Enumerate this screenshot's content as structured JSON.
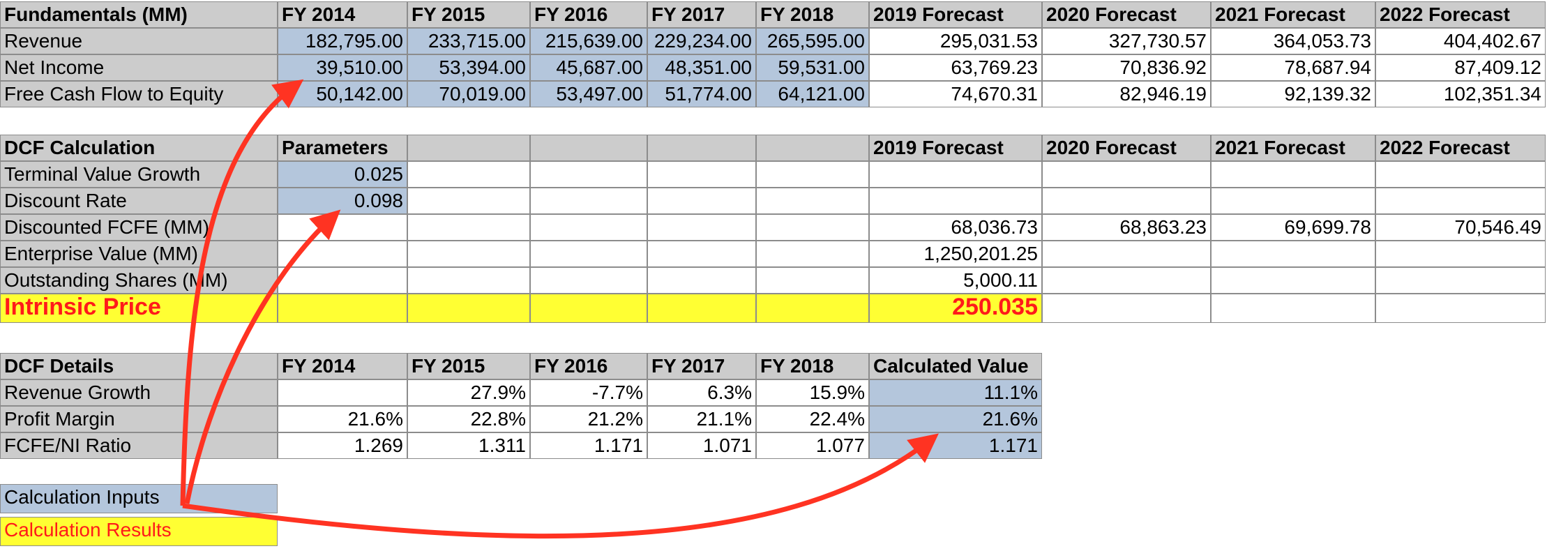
{
  "fundamentals": {
    "header": [
      "Fundamentals (MM)",
      "FY 2014",
      "FY 2015",
      "FY 2016",
      "FY 2017",
      "FY 2018",
      "2019 Forecast",
      "2020 Forecast",
      "2021 Forecast",
      "2022 Forecast"
    ],
    "rows": [
      {
        "label": "Revenue",
        "values": [
          "182,795.00",
          "233,715.00",
          "215,639.00",
          "229,234.00",
          "265,595.00",
          "295,031.53",
          "327,730.57",
          "364,053.73",
          "404,402.67"
        ]
      },
      {
        "label": "Net Income",
        "values": [
          "39,510.00",
          "53,394.00",
          "45,687.00",
          "48,351.00",
          "59,531.00",
          "63,769.23",
          "70,836.92",
          "78,687.94",
          "87,409.12"
        ]
      },
      {
        "label": "Free Cash Flow to Equity",
        "values": [
          "50,142.00",
          "70,019.00",
          "53,497.00",
          "51,774.00",
          "64,121.00",
          "74,670.31",
          "82,946.19",
          "92,139.32",
          "102,351.34"
        ]
      }
    ]
  },
  "dcf_calc": {
    "header": [
      "DCF Calculation",
      "Parameters",
      "",
      "",
      "",
      "",
      "2019 Forecast",
      "2020 Forecast",
      "2021 Forecast",
      "2022 Forecast"
    ],
    "rows": [
      {
        "label": "Terminal Value Growth",
        "values": [
          "0.025",
          "",
          "",
          "",
          "",
          "",
          "",
          "",
          ""
        ]
      },
      {
        "label": "Discount Rate",
        "values": [
          "0.098",
          "",
          "",
          "",
          "",
          "",
          "",
          "",
          ""
        ]
      },
      {
        "label": "Discounted FCFE (MM)",
        "values": [
          "",
          "",
          "",
          "",
          "",
          "68,036.73",
          "68,863.23",
          "69,699.78",
          "70,546.49"
        ]
      },
      {
        "label": "Enterprise Value (MM)",
        "values": [
          "",
          "",
          "",
          "",
          "",
          "1,250,201.25",
          "",
          "",
          ""
        ]
      },
      {
        "label": "Outstanding Shares (MM)",
        "values": [
          "",
          "",
          "",
          "",
          "",
          "5,000.11",
          "",
          "",
          ""
        ]
      }
    ],
    "intrinsic_label": "Intrinsic Price",
    "intrinsic_value": "250.035"
  },
  "dcf_details": {
    "header": [
      "DCF Details",
      "FY 2014",
      "FY 2015",
      "FY 2016",
      "FY 2017",
      "FY 2018",
      "Calculated Value"
    ],
    "rows": [
      {
        "label": "Revenue Growth",
        "values": [
          "",
          "27.9%",
          "-7.7%",
          "6.3%",
          "15.9%",
          "11.1%"
        ]
      },
      {
        "label": "Profit Margin",
        "values": [
          "21.6%",
          "22.8%",
          "21.2%",
          "21.1%",
          "22.4%",
          "21.6%"
        ]
      },
      {
        "label": "FCFE/NI Ratio",
        "values": [
          "1.269",
          "1.311",
          "1.171",
          "1.071",
          "1.077",
          "1.171"
        ]
      }
    ]
  },
  "legend": {
    "inputs": "Calculation Inputs",
    "results": "Calculation Results"
  },
  "colors": {
    "header_gray": "#cccccc",
    "input_blue": "#b4c6dc",
    "result_yellow": "#ffff33",
    "arrow_red": "#ff3322",
    "result_text_red": "#ff1a1a"
  }
}
